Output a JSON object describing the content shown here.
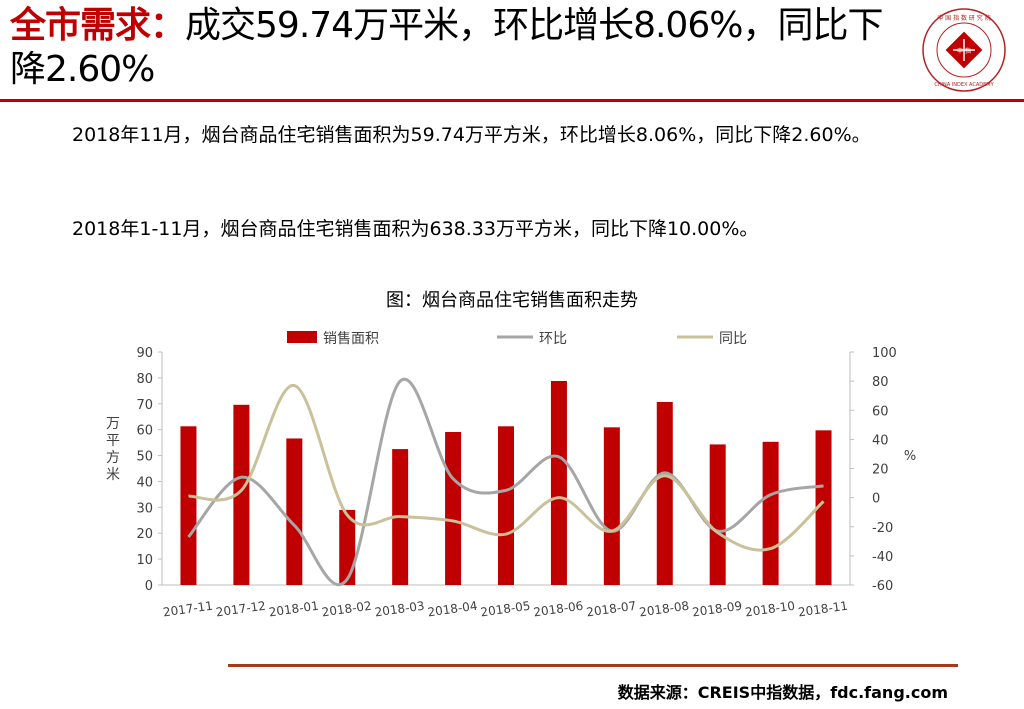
{
  "header": {
    "title_accent": "全市需求：",
    "title_rest": "成交59.74万平米，环比增长8.06%，同比下降2.60%"
  },
  "logo": {
    "text_top": "中 国 指 数 研 究 院",
    "text_center": "中 指",
    "text_bottom": "CHINA INDEX ACADEMY"
  },
  "body": {
    "paragraph1": "2018年11月，烟台商品住宅销售面积为59.74万平方米，环比增长8.06%，同比下降2.60%。",
    "paragraph2": "2018年1-11月，烟台商品住宅销售面积为638.33万平方米，同比下降10.00%。"
  },
  "chart_data": {
    "type": "bar",
    "title": "图：烟台商品住宅销售面积走势",
    "categories": [
      "2017-11",
      "2017-12",
      "2018-01",
      "2018-02",
      "2018-03",
      "2018-04",
      "2018-05",
      "2018-06",
      "2018-07",
      "2018-08",
      "2018-09",
      "2018-10",
      "2018-11"
    ],
    "series": [
      {
        "name": "销售面积",
        "type": "bar",
        "axis": "left",
        "color": "#c00000",
        "values": [
          61.3,
          69.6,
          56.6,
          29.0,
          52.5,
          59.1,
          61.3,
          78.8,
          60.9,
          70.7,
          54.3,
          55.3,
          59.74
        ]
      },
      {
        "name": "环比",
        "type": "line",
        "axis": "right",
        "color": "#a6a6a6",
        "values": [
          -27,
          14,
          -19,
          -56,
          80,
          13,
          5,
          28,
          -23,
          17,
          -23,
          2,
          8.06
        ]
      },
      {
        "name": "同比",
        "type": "line",
        "axis": "right",
        "color": "#c9c19a",
        "values": [
          1,
          5,
          77,
          -12,
          -13,
          -16,
          -25,
          0,
          -23,
          15,
          -24,
          -35,
          -2.6
        ]
      }
    ],
    "ylabel": "万平方米",
    "y2label": "%",
    "ylim": [
      0,
      90
    ],
    "y2lim": [
      -60,
      100
    ],
    "yticks": [
      "0",
      "10",
      "20",
      "30",
      "40",
      "50",
      "60",
      "70",
      "80",
      "90"
    ],
    "y2ticks": [
      "-60",
      "-40",
      "-20",
      "0",
      "20",
      "40",
      "60",
      "80",
      "100"
    ],
    "legend_position": "top",
    "grid": false
  },
  "footer": {
    "source": "数据来源：CREIS中指数据，fdc.fang.com"
  }
}
